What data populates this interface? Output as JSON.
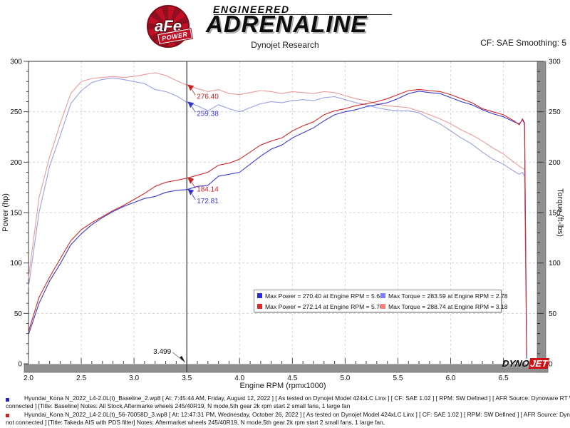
{
  "header": {
    "brand_circle_text": "aFe",
    "brand_power": "POWER",
    "brand_line1": "ENGINEERED",
    "brand_line2": "ADRENALINE",
    "title": "Dynojet Research",
    "smoothing": "CF: SAE Smoothing: 5"
  },
  "chart_data": {
    "type": "line",
    "title": "Dynojet Research",
    "xlabel": "Engine RPM (rpmx1000)",
    "ylabel_left": "Power (hp)",
    "ylabel_right": "Torque (ft-lbs)",
    "xlim": [
      2.0,
      6.82
    ],
    "ylim": [
      0,
      300
    ],
    "x_major_tick_step": 0.5,
    "x_minor_tick_step": 0.1,
    "x_last_label": 6.5,
    "y_major_tick_step": 50,
    "y_minor_tick_step": 10,
    "grid": "dashed",
    "grid_color": "#d4d4d4",
    "cursor": {
      "rpm": 3.5,
      "label": "3.499"
    },
    "rpm": [
      2.0,
      2.1,
      2.2,
      2.3,
      2.4,
      2.5,
      2.6,
      2.7,
      2.8,
      2.9,
      3.0,
      3.1,
      3.2,
      3.3,
      3.4,
      3.5,
      3.6,
      3.7,
      3.8,
      3.9,
      4.0,
      4.1,
      4.2,
      4.3,
      4.4,
      4.5,
      4.6,
      4.7,
      4.8,
      4.9,
      5.0,
      5.1,
      5.2,
      5.3,
      5.4,
      5.5,
      5.6,
      5.7,
      5.8,
      5.9,
      6.0,
      6.1,
      6.2,
      6.3,
      6.4,
      6.5,
      6.6,
      6.65,
      6.68,
      6.7,
      6.72
    ],
    "series": [
      {
        "name": "Baseline Torque (ft-lbs)",
        "axis": "right",
        "color": "#9aa0e2",
        "values": [
          76,
          150,
          196,
          226,
          258,
          271,
          279,
          282,
          283.6,
          282,
          280,
          278,
          272,
          270,
          266,
          259.4,
          256,
          251,
          257,
          253,
          250,
          254,
          258,
          260,
          259,
          261,
          262,
          261,
          264,
          265,
          262,
          259,
          257,
          254,
          252,
          251,
          251,
          249,
          243,
          238,
          231,
          224,
          218,
          210,
          203,
          198,
          191,
          188,
          190,
          186,
          8
        ]
      },
      {
        "name": "Takeda Torque (ft-lbs)",
        "axis": "right",
        "color": "#eb9a9a",
        "values": [
          85,
          165,
          205,
          238,
          268,
          280,
          283,
          284,
          285,
          284,
          285,
          287,
          288.7,
          286,
          281,
          276.4,
          273,
          270,
          272,
          268,
          267,
          269,
          271,
          270,
          268,
          270,
          269,
          268,
          270,
          269,
          266,
          263,
          261,
          258,
          256,
          255,
          254,
          250.7,
          247,
          243,
          238,
          232,
          227,
          221,
          214,
          208,
          200,
          196,
          194,
          193,
          12
        ]
      },
      {
        "name": "Baseline Power (hp)",
        "axis": "left",
        "color": "#3c3cd1",
        "values": [
          29,
          60,
          82,
          99,
          118,
          129,
          138,
          145,
          151,
          156,
          160,
          164,
          166,
          170,
          172,
          172.8,
          176,
          177,
          186,
          188,
          190,
          198,
          206,
          213,
          217,
          224,
          229,
          234,
          241,
          247,
          250,
          252,
          255,
          257,
          259,
          263,
          268,
          270.4,
          269,
          268,
          264,
          260,
          257,
          252,
          248,
          245,
          240,
          238,
          242,
          238,
          5
        ]
      },
      {
        "name": "Takeda Power (hp)",
        "axis": "left",
        "color": "#d12a2a",
        "values": [
          32,
          66,
          86,
          104,
          122,
          133,
          140,
          146,
          152,
          157,
          163,
          169,
          176,
          180,
          182,
          184.1,
          187,
          190,
          197,
          199,
          203,
          210,
          217,
          221,
          224,
          231,
          236,
          240,
          247,
          251,
          253,
          256,
          258,
          260,
          263,
          267,
          271,
          272.1,
          271,
          270,
          267,
          263,
          259,
          253,
          250,
          247,
          241,
          237,
          243,
          239,
          8
        ]
      }
    ],
    "annotations": [
      {
        "text": "276.40",
        "value": 276.4,
        "color": "#cc2222"
      },
      {
        "text": "259.38",
        "value": 259.38,
        "color": "#3838cc"
      },
      {
        "text": "184.14",
        "value": 184.14,
        "color": "#cc2222"
      },
      {
        "text": "172.81",
        "value": 172.81,
        "color": "#3838cc"
      }
    ],
    "legend": {
      "rows": [
        [
          {
            "color": "#2a2ae0",
            "text": "Max Power = 270.40 at Engine RPM = 5.64"
          },
          {
            "color": "#8080ff",
            "text": "Max Torque = 283.59 at Engine RPM = 2.78"
          }
        ],
        [
          {
            "color": "#e02a2a",
            "text": "Max Power = 272.14 at Engine RPM = 5.70"
          },
          {
            "color": "#ff8080",
            "text": "Max Torque = 288.74 at Engine RPM = 3.18"
          }
        ]
      ]
    },
    "watermark": {
      "part1": "DYNO",
      "part2": "JET"
    }
  },
  "footer": {
    "entries": [
      {
        "bullet_color": "#2424cc",
        "line1": "Hyundai_Kona N_2022_L4-2.0L(t)_Baseline_2.wp8 [ At: 7:45:44 AM, Friday, August 12, 2022 ] [ As tested on Dynojet Model 424xLC Linx ] [ CF: SAE 1.02 ] [ RPM: SW Defined ] [ AFR Source: Dynoware RT WB ] [ Linx not",
        "line2": "connected ] [Title: Baseline]  Notes: All Stock,Aftermarke wheels 245/40R19, N mode,5th gear 2k rpm start 2 small fans, 1 large fan"
      },
      {
        "bullet_color": "#cc2424",
        "line1": "Hyundai_Kona N_2022_L4-2.0L(t)_56-70058D_3.wp8 [ At: 12:47:31 PM, Wednesday, October 26, 2022 ] [ As tested on Dynojet Model 424xLC Linx ] [ CF: SAE 1.02 ] [ RPM: SW Defined ] [ AFR Source: Dynoware RT WB ] [ Linx",
        "line2": "not connected ] [Title: Takeda AIS with PDS filter]  Notes:  Aftermarket wheels 245/40R19, N mode,5th gear 2k rpm start 2 small fans, 1 large fan,"
      }
    ]
  }
}
